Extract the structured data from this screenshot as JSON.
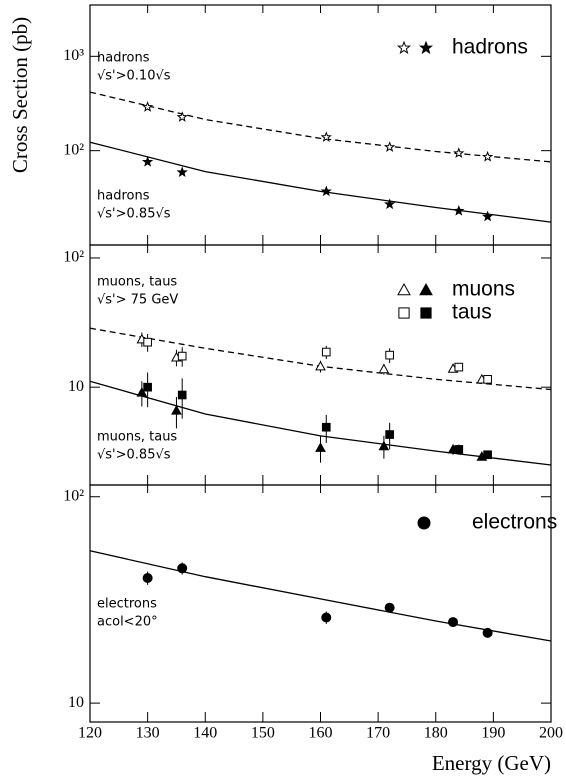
{
  "chart_data": [
    {
      "type": "scatter",
      "ylabel": "Cross Section (pb)",
      "log_y": true,
      "color": "#000000",
      "xlim": [
        120,
        200
      ],
      "ylim": [
        10,
        3500
      ],
      "yticks": [
        {
          "value": 100,
          "label": "10²"
        },
        {
          "value": 1000,
          "label": "10³"
        }
      ],
      "series": [
        {
          "line_style": "dashed",
          "x": [
            120,
            140,
            160,
            180,
            200
          ],
          "values": [
            418,
            214,
            135,
            98,
            76
          ]
        },
        {
          "line_style": "solid",
          "x": [
            120,
            140,
            160,
            180,
            200
          ],
          "values": [
            123,
            60,
            37,
            25,
            17.5
          ]
        },
        {
          "marker": "open-star",
          "x": [
            130,
            136,
            161,
            172,
            184,
            189
          ],
          "values": [
            290,
            227,
            139,
            109,
            94,
            86
          ]
        },
        {
          "marker": "filled-star",
          "x": [
            130,
            136,
            161,
            172,
            184,
            189
          ],
          "values": [
            76,
            59,
            37,
            27,
            23,
            20
          ]
        }
      ],
      "legend": [
        {
          "label": "hadrons",
          "markers": [
            "open-star",
            "filled-star"
          ]
        }
      ],
      "annotations": [
        {
          "lines": [
            "hadrons",
            "√s'>0.10√s"
          ]
        },
        {
          "lines": [
            "hadrons",
            "√s'>0.85√s"
          ]
        }
      ]
    },
    {
      "type": "scatter",
      "log_y": true,
      "color": "#000000",
      "xlim": [
        120,
        200
      ],
      "ylim": [
        1.75,
        126
      ],
      "yticks": [
        10,
        {
          "value": 100,
          "label": "10²"
        }
      ],
      "series": [
        {
          "line_style": "dashed",
          "x": [
            120,
            140,
            160,
            180,
            200
          ],
          "values": [
            28.6,
            20,
            14.5,
            11.5,
            9.6
          ]
        },
        {
          "line_style": "solid",
          "x": [
            120,
            140,
            160,
            180,
            200
          ],
          "values": [
            11.1,
            6.2,
            4.2,
            3.2,
            2.5
          ]
        },
        {
          "marker": "open-triangle",
          "x": [
            129,
            135,
            160,
            171,
            183,
            188
          ],
          "values": [
            23.5,
            17,
            14.5,
            13.8,
            13.9,
            11.5
          ],
          "errors": [
            3,
            2.5,
            1.5,
            1.3,
            0.8,
            0.3
          ]
        },
        {
          "marker": "open-square",
          "x": [
            130,
            136,
            161,
            172,
            184,
            189
          ],
          "values": [
            22.3,
            17.4,
            18.7,
            17.7,
            14.3,
            11.5
          ],
          "errors": [
            3.5,
            3,
            2.2,
            2.3,
            1,
            0.3
          ]
        },
        {
          "marker": "filled-triangle",
          "x": [
            129,
            135,
            160,
            171,
            183,
            188
          ],
          "values": [
            9.1,
            6.6,
            3.4,
            3.5,
            3.3,
            2.9
          ],
          "errors": [
            2,
            1.8,
            0.8,
            0.7,
            0.3,
            0.1
          ]
        },
        {
          "marker": "filled-square",
          "x": [
            130,
            136,
            161,
            172,
            184,
            189
          ],
          "values": [
            10,
            8.7,
            4.9,
            4.3,
            3.3,
            3.0
          ],
          "errors": [
            3,
            3,
            1.2,
            1,
            0.3,
            0.2
          ]
        }
      ],
      "legend": [
        {
          "label": "muons",
          "markers": [
            "open-triangle",
            "filled-triangle"
          ]
        },
        {
          "label": "taus",
          "markers": [
            "open-square",
            "filled-square"
          ]
        }
      ],
      "annotations": [
        {
          "lines": [
            "muons, taus",
            "√s'> 75 GeV"
          ]
        },
        {
          "lines": [
            "muons, taus",
            "√s'>0.85√s"
          ]
        }
      ]
    },
    {
      "type": "scatter",
      "xlabel": "Energy (GeV)",
      "log_y": true,
      "color": "#000000",
      "xlim": [
        120,
        200
      ],
      "ylim": [
        8.1,
        114
      ],
      "xticks": [
        120,
        130,
        140,
        150,
        160,
        170,
        180,
        190,
        200
      ],
      "yticks": [
        10,
        {
          "value": 100,
          "label": "10²"
        }
      ],
      "series": [
        {
          "line_style": "solid",
          "x": [
            120,
            140,
            160,
            180,
            200
          ],
          "values": [
            54.7,
            41,
            32,
            25,
            20
          ]
        },
        {
          "marker": "filled-circle",
          "x": [
            130,
            136,
            161,
            172,
            183,
            189
          ],
          "values": [
            40.4,
            45,
            26,
            29,
            24.7,
            21.9
          ],
          "errors": [
            3,
            3,
            1.8,
            1.5,
            0.5,
            0.3
          ]
        }
      ],
      "legend": [
        {
          "label": "electrons",
          "markers": [
            "filled-circle"
          ]
        }
      ],
      "annotations": [
        {
          "lines": [
            "electrons",
            "acol<20°"
          ]
        }
      ]
    }
  ]
}
